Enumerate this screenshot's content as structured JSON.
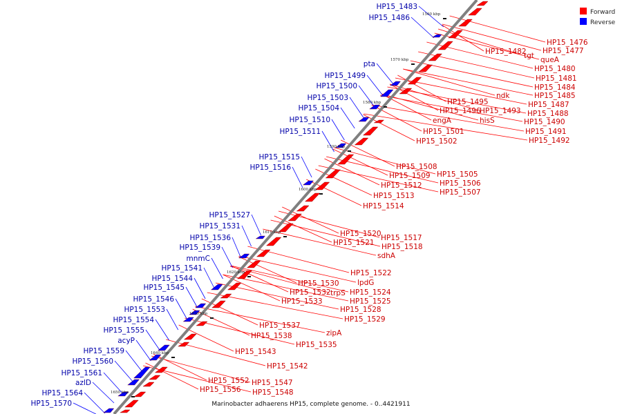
{
  "caption": "Marinobacter adhaerens HP15, complete genome. - 0..4421911",
  "legend": [
    {
      "label": "Forward",
      "color": "#ff0000"
    },
    {
      "label": "Reverse",
      "color": "#0000ff"
    }
  ],
  "colors": {
    "forward": "#ff0000",
    "forward_label": "#cc0000",
    "reverse": "#0000ff",
    "reverse_label": "#0000aa",
    "backbone": "#808080"
  },
  "ticks": [
    "1560 kbp",
    "1570 kbp",
    "1580 kbp",
    "1590 kbp",
    "1600 kbp",
    "1610 kbp",
    "1620 kbp",
    "1630 kbp",
    "1640 kbp",
    "1650 kbp"
  ],
  "forward_labels": [
    "HP15_1476",
    "HP15_1477",
    "HP15_1482",
    "tgt",
    "queA",
    "HP15_1480",
    "HP15_1481",
    "HP15_1484",
    "ndk",
    "HP15_1485",
    "HP15_1487",
    "HP15_1495",
    "HP15_1488",
    "HP15_1496",
    "HP15_1493",
    "engA",
    "hisS",
    "HP15_1490",
    "HP15_1491",
    "HP15_1492",
    "HP15_1501",
    "HP15_1502",
    "HP15_1508",
    "HP15_1505",
    "HP15_1509",
    "HP15_1506",
    "HP15_1512",
    "HP15_1507",
    "HP15_1513",
    "HP15_1514",
    "HP15_1520",
    "HP15_1517",
    "HP15_1521",
    "HP15_1518",
    "sdhA",
    "HP15_1522",
    "lpdG",
    "HP15_1530",
    "HP15_1524",
    "HP15_1532",
    "trpS",
    "HP15_1525",
    "HP15_1533",
    "HP15_1528",
    "HP15_1529",
    "HP15_1537",
    "zipA",
    "HP15_1538",
    "HP15_1535",
    "HP15_1543",
    "HP15_1542",
    "HP15_1552",
    "HP15_1547",
    "HP15_1556",
    "HP15_1548"
  ],
  "reverse_labels": [
    "HP15_1483",
    "HP15_1486",
    "pta",
    "HP15_1499",
    "HP15_1500",
    "HP15_1503",
    "HP15_1504",
    "HP15_1510",
    "HP15_1511",
    "HP15_1515",
    "HP15_1516",
    "HP15_1527",
    "HP15_1531",
    "HP15_1536",
    "HP15_1539",
    "mnmC",
    "HP15_1541",
    "HP15_1544",
    "HP15_1545",
    "HP15_1546",
    "HP15_1553",
    "HP15_1554",
    "HP15_1555",
    "acyP",
    "HP15_1559",
    "HP15_1560",
    "HP15_1561",
    "azlD",
    "HP15_1564",
    "HP15_1570"
  ]
}
